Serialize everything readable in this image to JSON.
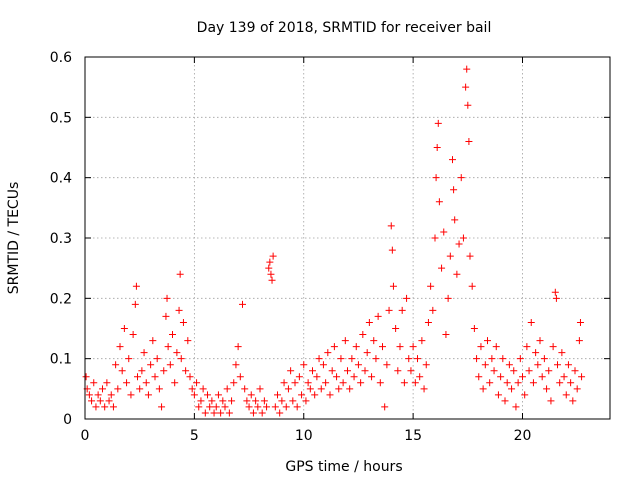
{
  "chart_data": {
    "type": "scatter",
    "title": "Day 139 of 2018, SRMTID for receiver bail",
    "xlabel": "GPS time / hours",
    "ylabel": "SRMTID / TECUs",
    "xlim": [
      0,
      24
    ],
    "ylim": [
      0,
      0.6
    ],
    "xticks": [
      0,
      5,
      10,
      15,
      20
    ],
    "yticks": [
      0,
      0.1,
      0.2,
      0.3,
      0.4,
      0.5,
      0.6
    ],
    "xtick_labels": [
      "0",
      "5",
      "10",
      "15",
      "20"
    ],
    "ytick_labels": [
      "0",
      "0.1",
      "0.2",
      "0.3",
      "0.4",
      "0.5",
      "0.6"
    ],
    "grid": true,
    "marker": "+",
    "color": "#ff0000",
    "series": [
      {
        "name": "SRMTID",
        "points": [
          [
            0.05,
            0.07
          ],
          [
            0.1,
            0.05
          ],
          [
            0.2,
            0.04
          ],
          [
            0.3,
            0.03
          ],
          [
            0.4,
            0.06
          ],
          [
            0.5,
            0.02
          ],
          [
            0.6,
            0.04
          ],
          [
            0.7,
            0.03
          ],
          [
            0.8,
            0.05
          ],
          [
            0.9,
            0.02
          ],
          [
            1.0,
            0.06
          ],
          [
            1.1,
            0.03
          ],
          [
            1.2,
            0.04
          ],
          [
            1.3,
            0.02
          ],
          [
            1.4,
            0.09
          ],
          [
            1.5,
            0.05
          ],
          [
            1.6,
            0.12
          ],
          [
            1.7,
            0.08
          ],
          [
            1.8,
            0.15
          ],
          [
            1.9,
            0.06
          ],
          [
            2.0,
            0.1
          ],
          [
            2.1,
            0.04
          ],
          [
            2.2,
            0.14
          ],
          [
            2.3,
            0.19
          ],
          [
            2.35,
            0.22
          ],
          [
            2.4,
            0.07
          ],
          [
            2.5,
            0.05
          ],
          [
            2.6,
            0.08
          ],
          [
            2.7,
            0.11
          ],
          [
            2.8,
            0.06
          ],
          [
            2.9,
            0.04
          ],
          [
            3.0,
            0.09
          ],
          [
            3.1,
            0.13
          ],
          [
            3.2,
            0.07
          ],
          [
            3.3,
            0.1
          ],
          [
            3.4,
            0.05
          ],
          [
            3.5,
            0.02
          ],
          [
            3.6,
            0.08
          ],
          [
            3.7,
            0.17
          ],
          [
            3.75,
            0.2
          ],
          [
            3.8,
            0.12
          ],
          [
            3.9,
            0.09
          ],
          [
            4.0,
            0.14
          ],
          [
            4.1,
            0.06
          ],
          [
            4.2,
            0.11
          ],
          [
            4.3,
            0.18
          ],
          [
            4.35,
            0.24
          ],
          [
            4.4,
            0.1
          ],
          [
            4.5,
            0.16
          ],
          [
            4.6,
            0.08
          ],
          [
            4.7,
            0.13
          ],
          [
            4.8,
            0.07
          ],
          [
            4.9,
            0.05
          ],
          [
            5.0,
            0.04
          ],
          [
            5.1,
            0.06
          ],
          [
            5.2,
            0.02
          ],
          [
            5.3,
            0.03
          ],
          [
            5.4,
            0.05
          ],
          [
            5.5,
            0.01
          ],
          [
            5.6,
            0.04
          ],
          [
            5.7,
            0.02
          ],
          [
            5.8,
            0.03
          ],
          [
            5.9,
            0.01
          ],
          [
            6.0,
            0.02
          ],
          [
            6.1,
            0.04
          ],
          [
            6.2,
            0.01
          ],
          [
            6.3,
            0.03
          ],
          [
            6.4,
            0.02
          ],
          [
            6.5,
            0.05
          ],
          [
            6.6,
            0.01
          ],
          [
            6.7,
            0.03
          ],
          [
            6.8,
            0.06
          ],
          [
            6.9,
            0.09
          ],
          [
            7.0,
            0.12
          ],
          [
            7.1,
            0.07
          ],
          [
            7.2,
            0.19
          ],
          [
            7.3,
            0.05
          ],
          [
            7.4,
            0.03
          ],
          [
            7.5,
            0.02
          ],
          [
            7.6,
            0.04
          ],
          [
            7.7,
            0.01
          ],
          [
            7.8,
            0.03
          ],
          [
            7.9,
            0.02
          ],
          [
            8.0,
            0.05
          ],
          [
            8.1,
            0.01
          ],
          [
            8.2,
            0.03
          ],
          [
            8.3,
            0.02
          ],
          [
            8.4,
            0.25
          ],
          [
            8.45,
            0.26
          ],
          [
            8.5,
            0.24
          ],
          [
            8.55,
            0.23
          ],
          [
            8.6,
            0.27
          ],
          [
            8.7,
            0.02
          ],
          [
            8.8,
            0.04
          ],
          [
            8.9,
            0.01
          ],
          [
            9.0,
            0.03
          ],
          [
            9.1,
            0.06
          ],
          [
            9.2,
            0.02
          ],
          [
            9.3,
            0.05
          ],
          [
            9.4,
            0.08
          ],
          [
            9.5,
            0.03
          ],
          [
            9.6,
            0.06
          ],
          [
            9.7,
            0.02
          ],
          [
            9.8,
            0.07
          ],
          [
            9.9,
            0.04
          ],
          [
            10.0,
            0.09
          ],
          [
            10.1,
            0.03
          ],
          [
            10.2,
            0.06
          ],
          [
            10.3,
            0.05
          ],
          [
            10.4,
            0.08
          ],
          [
            10.5,
            0.04
          ],
          [
            10.6,
            0.07
          ],
          [
            10.7,
            0.1
          ],
          [
            10.8,
            0.05
          ],
          [
            10.9,
            0.09
          ],
          [
            11.0,
            0.06
          ],
          [
            11.1,
            0.11
          ],
          [
            11.2,
            0.04
          ],
          [
            11.3,
            0.08
          ],
          [
            11.4,
            0.12
          ],
          [
            11.5,
            0.07
          ],
          [
            11.6,
            0.05
          ],
          [
            11.7,
            0.1
          ],
          [
            11.8,
            0.06
          ],
          [
            11.9,
            0.13
          ],
          [
            12.0,
            0.08
          ],
          [
            12.1,
            0.05
          ],
          [
            12.2,
            0.1
          ],
          [
            12.3,
            0.07
          ],
          [
            12.4,
            0.12
          ],
          [
            12.5,
            0.09
          ],
          [
            12.6,
            0.06
          ],
          [
            12.7,
            0.14
          ],
          [
            12.8,
            0.08
          ],
          [
            12.9,
            0.11
          ],
          [
            13.0,
            0.16
          ],
          [
            13.1,
            0.07
          ],
          [
            13.2,
            0.13
          ],
          [
            13.3,
            0.1
          ],
          [
            13.4,
            0.17
          ],
          [
            13.5,
            0.06
          ],
          [
            13.6,
            0.12
          ],
          [
            13.7,
            0.02
          ],
          [
            13.8,
            0.09
          ],
          [
            13.9,
            0.18
          ],
          [
            14.0,
            0.32
          ],
          [
            14.05,
            0.28
          ],
          [
            14.1,
            0.22
          ],
          [
            14.2,
            0.15
          ],
          [
            14.3,
            0.08
          ],
          [
            14.4,
            0.12
          ],
          [
            14.5,
            0.18
          ],
          [
            14.6,
            0.06
          ],
          [
            14.7,
            0.2
          ],
          [
            14.8,
            0.1
          ],
          [
            14.9,
            0.08
          ],
          [
            15.0,
            0.12
          ],
          [
            15.1,
            0.06
          ],
          [
            15.2,
            0.1
          ],
          [
            15.3,
            0.07
          ],
          [
            15.4,
            0.13
          ],
          [
            15.5,
            0.05
          ],
          [
            15.6,
            0.09
          ],
          [
            15.7,
            0.16
          ],
          [
            15.8,
            0.22
          ],
          [
            15.9,
            0.18
          ],
          [
            16.0,
            0.3
          ],
          [
            16.05,
            0.4
          ],
          [
            16.1,
            0.45
          ],
          [
            16.15,
            0.49
          ],
          [
            16.2,
            0.36
          ],
          [
            16.3,
            0.25
          ],
          [
            16.4,
            0.31
          ],
          [
            16.5,
            0.14
          ],
          [
            16.6,
            0.2
          ],
          [
            16.7,
            0.27
          ],
          [
            16.8,
            0.43
          ],
          [
            16.85,
            0.38
          ],
          [
            16.9,
            0.33
          ],
          [
            17.0,
            0.24
          ],
          [
            17.1,
            0.29
          ],
          [
            17.2,
            0.4
          ],
          [
            17.3,
            0.3
          ],
          [
            17.4,
            0.55
          ],
          [
            17.45,
            0.58
          ],
          [
            17.5,
            0.52
          ],
          [
            17.55,
            0.46
          ],
          [
            17.6,
            0.27
          ],
          [
            17.7,
            0.22
          ],
          [
            17.8,
            0.15
          ],
          [
            17.9,
            0.1
          ],
          [
            18.0,
            0.07
          ],
          [
            18.1,
            0.12
          ],
          [
            18.2,
            0.05
          ],
          [
            18.3,
            0.09
          ],
          [
            18.4,
            0.13
          ],
          [
            18.5,
            0.06
          ],
          [
            18.6,
            0.1
          ],
          [
            18.7,
            0.08
          ],
          [
            18.8,
            0.12
          ],
          [
            18.9,
            0.04
          ],
          [
            19.0,
            0.07
          ],
          [
            19.1,
            0.1
          ],
          [
            19.2,
            0.03
          ],
          [
            19.3,
            0.06
          ],
          [
            19.4,
            0.09
          ],
          [
            19.5,
            0.05
          ],
          [
            19.6,
            0.08
          ],
          [
            19.7,
            0.02
          ],
          [
            19.8,
            0.06
          ],
          [
            19.9,
            0.1
          ],
          [
            20.0,
            0.07
          ],
          [
            20.1,
            0.04
          ],
          [
            20.2,
            0.12
          ],
          [
            20.3,
            0.08
          ],
          [
            20.4,
            0.16
          ],
          [
            20.5,
            0.06
          ],
          [
            20.6,
            0.11
          ],
          [
            20.7,
            0.09
          ],
          [
            20.8,
            0.13
          ],
          [
            20.9,
            0.07
          ],
          [
            21.0,
            0.1
          ],
          [
            21.1,
            0.05
          ],
          [
            21.2,
            0.08
          ],
          [
            21.3,
            0.03
          ],
          [
            21.4,
            0.12
          ],
          [
            21.5,
            0.21
          ],
          [
            21.55,
            0.2
          ],
          [
            21.6,
            0.09
          ],
          [
            21.7,
            0.06
          ],
          [
            21.8,
            0.11
          ],
          [
            21.9,
            0.07
          ],
          [
            22.0,
            0.04
          ],
          [
            22.1,
            0.09
          ],
          [
            22.2,
            0.06
          ],
          [
            22.3,
            0.03
          ],
          [
            22.4,
            0.08
          ],
          [
            22.5,
            0.05
          ],
          [
            22.6,
            0.13
          ],
          [
            22.65,
            0.16
          ],
          [
            22.7,
            0.07
          ]
        ]
      }
    ]
  }
}
